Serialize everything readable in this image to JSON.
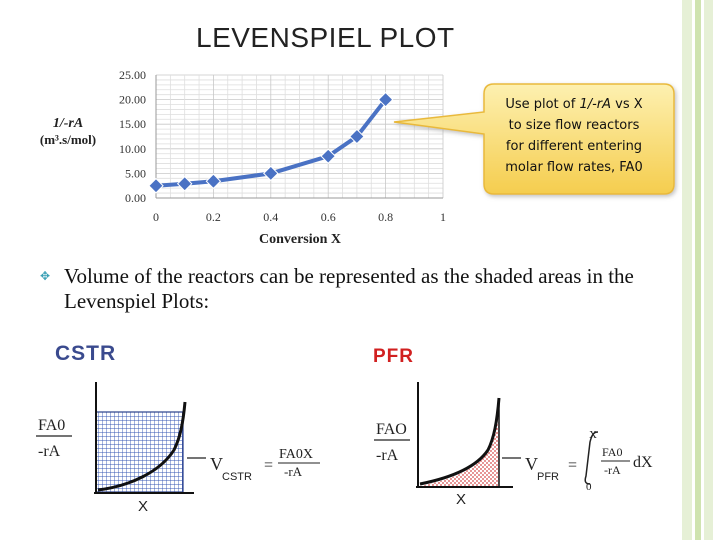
{
  "title": "LEVENSPIEL PLOT",
  "colors": {
    "green_bar_1": "#cfe3b0",
    "green_bar_2": "#e6f0d6",
    "chart_line": "#4a72c4",
    "callout_fill": "#fbe07a",
    "cstr_label": "#3a4a8e",
    "pfr_label": "#d12020",
    "bullet": "#3aa0b5"
  },
  "chart": {
    "ylabel_line1": "1/-rA",
    "ylabel_line2": "(m³.s/mol)"
  },
  "chart_data": {
    "type": "line",
    "xlabel": "Conversion X",
    "ylabel": "1/-rA (m³.s/mol)",
    "xlim": [
      0,
      1
    ],
    "ylim": [
      0,
      25
    ],
    "x_ticks": [
      "0",
      "0.2",
      "0.4",
      "0.6",
      "0.8",
      "1"
    ],
    "y_ticks": [
      "0.00",
      "5.00",
      "10.00",
      "15.00",
      "20.00",
      "25.00"
    ],
    "grid": true,
    "series": [
      {
        "x": [
          0,
          0.1,
          0.2,
          0.4,
          0.6,
          0.7,
          0.8
        ],
        "y": [
          2.5,
          2.9,
          3.4,
          5.0,
          8.5,
          12.5,
          20.0
        ]
      }
    ]
  },
  "callout": {
    "line1_prefix": "Use plot of ",
    "line1_expr": "1/-rA",
    "line1_suffix": " vs X",
    "line2": "to size flow reactors",
    "line3": "for different entering",
    "line4": "molar flow rates, FA0"
  },
  "bullet_glyph": "✥",
  "body_text": "Volume of the reactors can be represented as the shaded areas in the Levenspiel Plots:",
  "cstr": {
    "label": "CSTR",
    "ylabel_num": "FA0",
    "ylabel_den": "-rA",
    "xlabel": "X",
    "eq_lhs": "V",
    "eq_lhs_sub": "CSTR",
    "eq_equals": "=",
    "eq_num": "FA0X",
    "eq_den": "-rA"
  },
  "pfr": {
    "label": "PFR",
    "ylabel_num": "FAO",
    "ylabel_den": "-rA",
    "xlabel": "X",
    "eq_lhs": "V",
    "eq_lhs_sub": "PFR",
    "eq_equals": "=",
    "int_upper": "X",
    "int_lower": "0",
    "eq_num": "FA0",
    "eq_den": "-rA",
    "eq_dx": "dX"
  }
}
